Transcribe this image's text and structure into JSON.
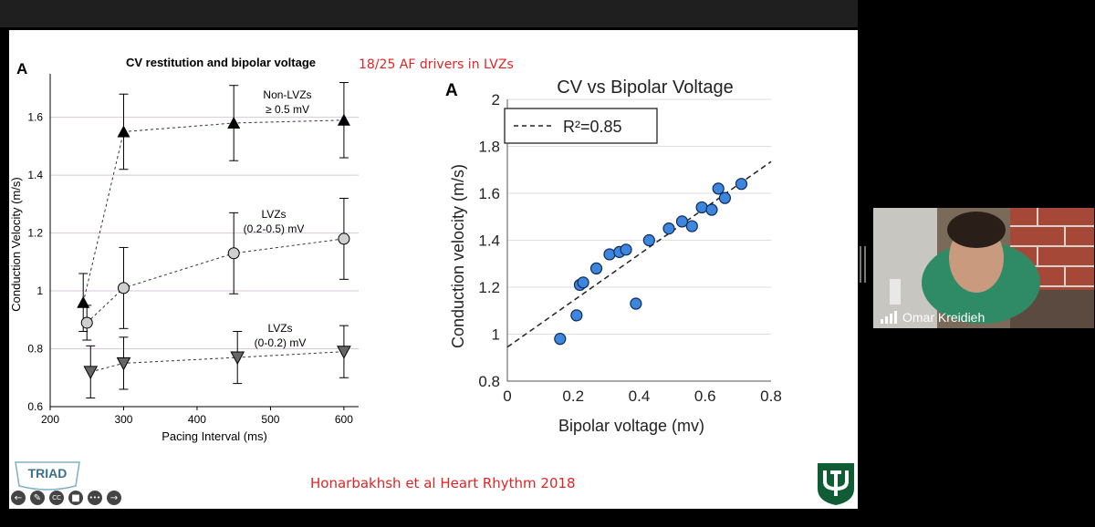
{
  "slide": {
    "header_red": "18/25 AF drivers in LVZs",
    "citation": "Honarbakhsh et al Heart Rhythm 2018",
    "logo_text": "TRIAD"
  },
  "left_chart": {
    "panel_label": "A",
    "title": "CV restitution and bipolar voltage",
    "xlabel": "Pacing Interval (ms)",
    "ylabel": "Conduction Velocity (m/s)",
    "xticks": [
      "200",
      "300",
      "400",
      "500",
      "600"
    ],
    "yticks": [
      "0.6",
      "0.8",
      "1",
      "1.2",
      "1.4",
      "1.6"
    ],
    "annotations": {
      "non_lvz_1": "Non-LVZs",
      "non_lvz_2": "≥ 0.5 mV",
      "lvz_mid_1": "LVZs",
      "lvz_mid_2": "(0.2-0.5) mV",
      "lvz_low_1": "LVZs",
      "lvz_low_2": "(0-0.2) mV"
    }
  },
  "right_chart": {
    "panel_label": "A",
    "title": "CV vs Bipolar Voltage",
    "xlabel": "Bipolar voltage (mv)",
    "ylabel": "Conduction velocity (m/s)",
    "legend_label": "R²=0.85",
    "xticks": [
      "0",
      "0.2",
      "0.4",
      "0.6",
      "0.8"
    ],
    "yticks": [
      "0.8",
      "1",
      "1.2",
      "1.4",
      "1.6",
      "1.8",
      "2"
    ]
  },
  "participant": {
    "name": "Omar Kreidieh"
  },
  "controls": [
    {
      "icon": "back-arrow-icon",
      "glyph": "←"
    },
    {
      "icon": "pencil-icon",
      "glyph": "✎"
    },
    {
      "icon": "captions-icon",
      "glyph": "CC"
    },
    {
      "icon": "video-icon",
      "glyph": "■"
    },
    {
      "icon": "more-icon",
      "glyph": "•••"
    },
    {
      "icon": "forward-arrow-icon",
      "glyph": "→"
    }
  ],
  "chart_data": [
    {
      "type": "line",
      "title": "CV restitution and bipolar voltage",
      "xlabel": "Pacing Interval (ms)",
      "ylabel": "Conduction Velocity (m/s)",
      "xlim": [
        200,
        620
      ],
      "ylim": [
        0.6,
        1.75
      ],
      "grid": "horizontal",
      "series": [
        {
          "name": "Non-LVZs ≥ 0.5 mV",
          "marker": "triangle-up",
          "x": [
            245,
            300,
            450,
            600
          ],
          "y": [
            0.96,
            1.55,
            1.58,
            1.59
          ],
          "err": [
            0.1,
            0.13,
            0.13,
            0.13
          ]
        },
        {
          "name": "LVZs (0.2-0.5) mV",
          "marker": "circle",
          "x": [
            250,
            300,
            450,
            600
          ],
          "y": [
            0.89,
            1.01,
            1.13,
            1.18
          ],
          "err": [
            0.06,
            0.14,
            0.14,
            0.14
          ]
        },
        {
          "name": "LVZs (0-0.2) mV",
          "marker": "triangle-down",
          "x": [
            255,
            300,
            455,
            600
          ],
          "y": [
            0.72,
            0.75,
            0.77,
            0.79
          ],
          "err": [
            0.09,
            0.09,
            0.09,
            0.09
          ]
        }
      ]
    },
    {
      "type": "scatter",
      "title": "CV vs Bipolar Voltage",
      "xlabel": "Bipolar voltage (mv)",
      "ylabel": "Conduction velocity (m/s)",
      "xlim": [
        0,
        0.8
      ],
      "ylim": [
        0.8,
        2
      ],
      "grid": "horizontal",
      "legend": "top-left",
      "points": [
        [
          0.16,
          0.98
        ],
        [
          0.21,
          1.08
        ],
        [
          0.22,
          1.21
        ],
        [
          0.23,
          1.22
        ],
        [
          0.27,
          1.28
        ],
        [
          0.31,
          1.34
        ],
        [
          0.34,
          1.35
        ],
        [
          0.36,
          1.36
        ],
        [
          0.39,
          1.13
        ],
        [
          0.43,
          1.4
        ],
        [
          0.49,
          1.45
        ],
        [
          0.53,
          1.48
        ],
        [
          0.56,
          1.46
        ],
        [
          0.59,
          1.54
        ],
        [
          0.62,
          1.53
        ],
        [
          0.64,
          1.62
        ],
        [
          0.66,
          1.58
        ],
        [
          0.71,
          1.64
        ]
      ],
      "fit": {
        "x": [
          0,
          0.8
        ],
        "y": [
          0.945,
          1.735
        ]
      }
    }
  ]
}
